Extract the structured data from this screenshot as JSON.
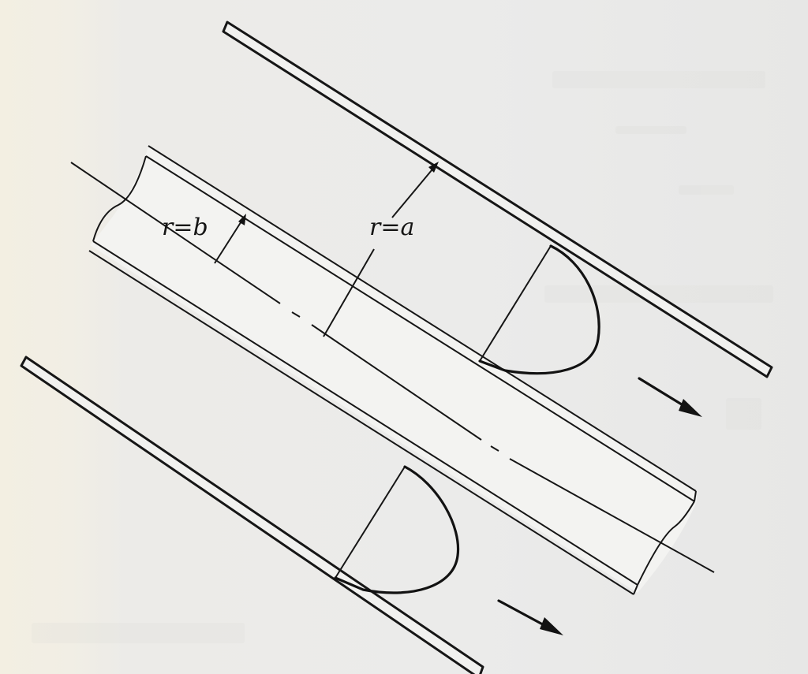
{
  "diagram": {
    "labels": {
      "inner_radius": "r=b",
      "outer_radius": "r=a"
    },
    "elements": {
      "outer_cylinder_upper_wall": "outer-cylinder-wall",
      "outer_cylinder_lower_wall": "outer-cylinder-wall",
      "inner_cylinder": "inner-cylinder",
      "centerline": "axis-centerline",
      "velocity_profile_upper": "parabolic-velocity-profile",
      "velocity_profile_lower": "parabolic-velocity-profile",
      "flow_direction": "flow-arrow"
    }
  }
}
